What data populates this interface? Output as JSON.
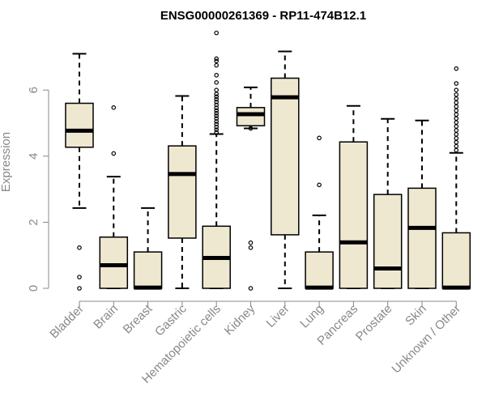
{
  "chart_data": {
    "type": "boxplot",
    "title": "ENSG00000261369 - RP11-474B12.1",
    "xlabel": "",
    "ylabel": "Expression",
    "ylim": [
      0,
      7.9
    ],
    "yticks": [
      0,
      2,
      4,
      6
    ],
    "categories": [
      "Bladder",
      "Brain",
      "Breast",
      "Gastric",
      "Hematopoietic cells",
      "Kidney",
      "Liver",
      "Lung",
      "Pancreas",
      "Prostate",
      "Skin",
      "Unknown / Other"
    ],
    "boxes": [
      {
        "category": "Bladder",
        "whisker_low": 2.43,
        "q1": 4.27,
        "median": 4.77,
        "q3": 5.6,
        "whisker_high": 7.1,
        "outliers": [
          1.23,
          0.34,
          0.0
        ]
      },
      {
        "category": "Brain",
        "whisker_low": 0.0,
        "q1": 0.0,
        "median": 0.7,
        "q3": 1.55,
        "whisker_high": 3.38,
        "outliers": [
          4.08,
          5.47
        ]
      },
      {
        "category": "Breast",
        "whisker_low": 0.0,
        "q1": 0.0,
        "median": 0.02,
        "q3": 1.1,
        "whisker_high": 2.43,
        "outliers": []
      },
      {
        "category": "Gastric",
        "whisker_low": 0.0,
        "q1": 1.52,
        "median": 3.46,
        "q3": 4.31,
        "whisker_high": 5.82,
        "outliers": []
      },
      {
        "category": "Hematopoietic cells",
        "whisker_low": 0.0,
        "q1": 0.0,
        "median": 0.92,
        "q3": 1.88,
        "whisker_high": 4.67,
        "outliers": [
          4.72,
          4.8,
          4.88,
          4.97,
          5.05,
          5.14,
          5.22,
          5.3,
          5.38,
          5.46,
          5.55,
          5.64,
          5.72,
          5.8,
          5.88,
          6.0,
          6.23,
          6.45,
          6.75,
          6.88,
          6.95,
          7.73
        ]
      },
      {
        "category": "Kidney",
        "whisker_low": 4.84,
        "q1": 4.92,
        "median": 5.27,
        "q3": 5.47,
        "whisker_high": 6.08,
        "outliers": [
          4.84,
          1.38,
          1.23,
          0.0
        ]
      },
      {
        "category": "Liver",
        "whisker_low": 0.0,
        "q1": 1.62,
        "median": 5.78,
        "q3": 6.36,
        "whisker_high": 7.17,
        "outliers": []
      },
      {
        "category": "Lung",
        "whisker_low": 0.0,
        "q1": 0.0,
        "median": 0.02,
        "q3": 1.1,
        "whisker_high": 2.21,
        "outliers": [
          3.13,
          4.55
        ]
      },
      {
        "category": "Pancreas",
        "whisker_low": 0.0,
        "q1": 0.0,
        "median": 1.39,
        "q3": 4.43,
        "whisker_high": 5.52,
        "outliers": []
      },
      {
        "category": "Prostate",
        "whisker_low": 0.0,
        "q1": 0.0,
        "median": 0.6,
        "q3": 2.84,
        "whisker_high": 5.13,
        "outliers": []
      },
      {
        "category": "Skin",
        "whisker_low": 0.0,
        "q1": 0.0,
        "median": 1.83,
        "q3": 3.03,
        "whisker_high": 5.08,
        "outliers": []
      },
      {
        "category": "Unknown / Other",
        "whisker_low": 0.0,
        "q1": 0.0,
        "median": 0.02,
        "q3": 1.68,
        "whisker_high": 4.1,
        "outliers": [
          4.18,
          4.3,
          4.42,
          4.54,
          4.66,
          4.78,
          4.9,
          5.02,
          5.14,
          5.26,
          5.38,
          5.5,
          5.62,
          5.74,
          5.86,
          6.0,
          6.2,
          6.65
        ]
      }
    ],
    "colors": {
      "box_fill": "#efe8d1",
      "box_stroke": "#000000",
      "axis": "#888888",
      "tick_label": "#888888",
      "title": "#000000"
    }
  }
}
